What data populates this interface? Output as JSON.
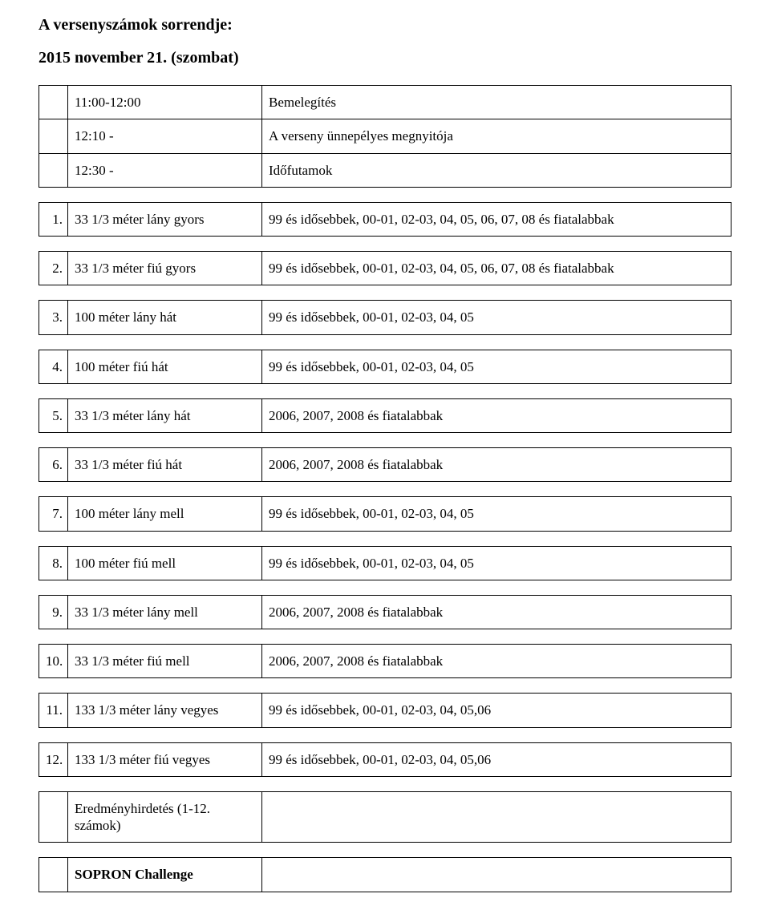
{
  "title": "A versenyszámok sorrendje:",
  "subtitle": "2015 november 21. (szombat)",
  "schedule": [
    {
      "col1": "",
      "col2": "11:00-12:00",
      "col3": "Bemelegítés"
    },
    {
      "col1": "",
      "col2": "12:10 -",
      "col3": "A verseny ünnepélyes megnyitója"
    },
    {
      "col1": "",
      "col2": "12:30 -",
      "col3": "Időfutamok"
    }
  ],
  "events": [
    {
      "n": "1.",
      "name": "33 1/3 méter lány gyors",
      "cat": "99 és idősebbek, 00-01, 02-03, 04, 05, 06, 07, 08 és fiatalabbak"
    },
    {
      "n": "2.",
      "name": "33 1/3 méter fiú gyors",
      "cat": "99 és idősebbek, 00-01, 02-03, 04, 05, 06, 07, 08 és fiatalabbak"
    },
    {
      "n": "3.",
      "name": "100 méter lány hát",
      "cat": "99 és idősebbek, 00-01, 02-03, 04, 05"
    },
    {
      "n": "4.",
      "name": "100 méter fiú hát",
      "cat": "99 és idősebbek, 00-01, 02-03, 04, 05"
    },
    {
      "n": "5.",
      "name": "33 1/3 méter lány hát",
      "cat": "2006, 2007, 2008 és fiatalabbak"
    },
    {
      "n": "6.",
      "name": "33 1/3 méter fiú hát",
      "cat": "2006, 2007, 2008 és fiatalabbak"
    },
    {
      "n": "7.",
      "name": "100 méter lány mell",
      "cat": "99 és idősebbek, 00-01, 02-03, 04, 05"
    },
    {
      "n": "8.",
      "name": "100 méter fiú mell",
      "cat": "99 és idősebbek, 00-01, 02-03, 04, 05"
    },
    {
      "n": "9.",
      "name": "33 1/3 méter lány mell",
      "cat": "2006, 2007, 2008 és fiatalabbak"
    },
    {
      "n": "10.",
      "name": "33 1/3 méter fiú mell",
      "cat": "2006, 2007, 2008 és fiatalabbak"
    },
    {
      "n": "11.",
      "name": "133 1/3 méter lány vegyes",
      "cat": "99 és idősebbek, 00-01, 02-03, 04, 05,06"
    },
    {
      "n": "12.",
      "name": "133 1/3 méter fiú vegyes",
      "cat": "99 és idősebbek, 00-01, 02-03, 04, 05,06"
    }
  ],
  "closing": [
    {
      "n": "",
      "name": "Eredményhirdetés (1-12. számok)",
      "cat": ""
    },
    {
      "n": "",
      "name": "SOPRON  Challenge",
      "cat": ""
    }
  ]
}
